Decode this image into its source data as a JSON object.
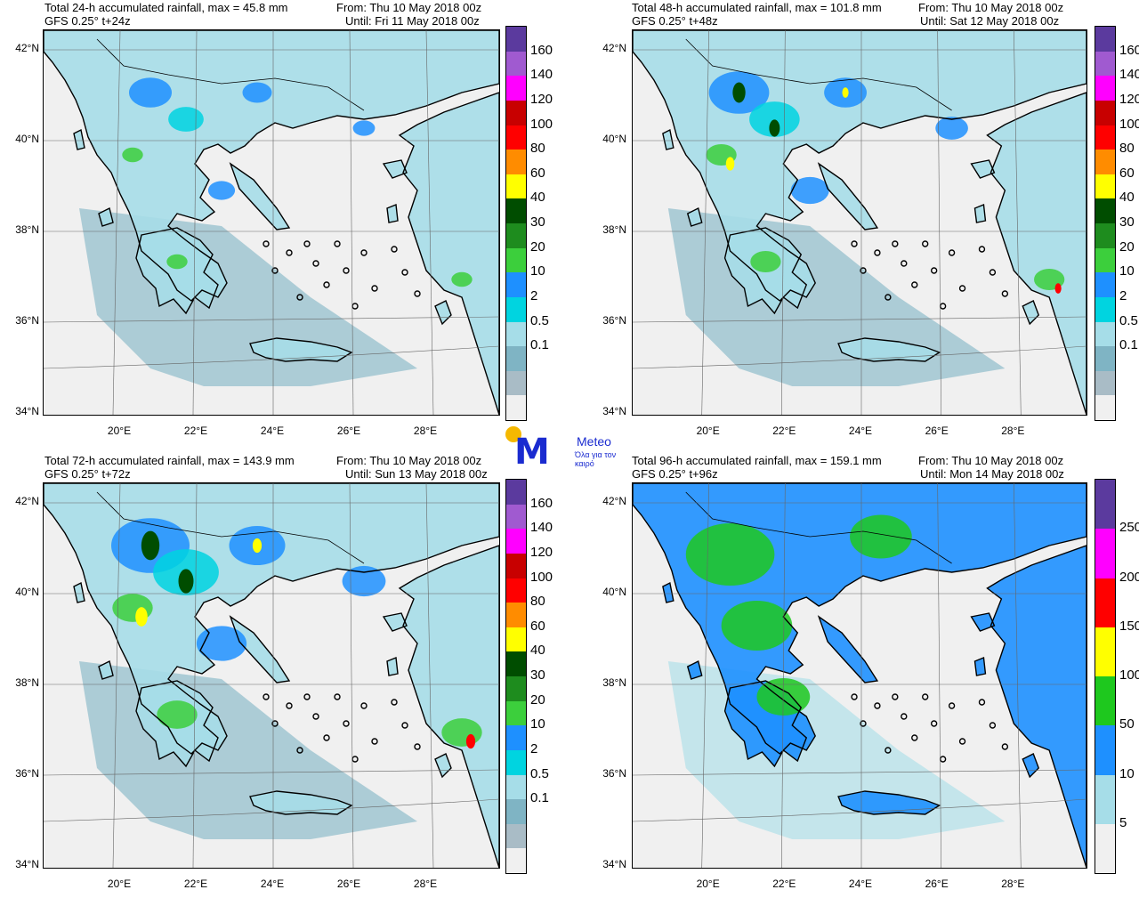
{
  "panels": [
    {
      "id": "tl",
      "title": "Total 24-h accumulated rainfall, max = 45.8 mm",
      "model": "GFS 0.25° t+24z",
      "from": "From: Thu 10 May 2018 00z",
      "until": "Until: Fri 11 May 2018 00z",
      "intensity": 0.35,
      "colorbar": [
        "160",
        "140",
        "120",
        "100",
        "80",
        "60",
        "40",
        "30",
        "20",
        "10",
        "2",
        "0.5",
        "0.1"
      ]
    },
    {
      "id": "tr",
      "title": "Total 48-h accumulated rainfall, max = 101.8 mm",
      "model": "GFS 0.25° t+48z",
      "from": "From: Thu 10 May 2018 00z",
      "until": "Until: Sat 12 May 2018 00z",
      "intensity": 0.6,
      "colorbar": [
        "160",
        "140",
        "120",
        "100",
        "80",
        "60",
        "40",
        "30",
        "20",
        "10",
        "2",
        "0.5",
        "0.1"
      ]
    },
    {
      "id": "bl",
      "title": "Total 72-h accumulated rainfall, max = 143.9 mm",
      "model": "GFS 0.25° t+72z",
      "from": "From: Thu 10 May 2018 00z",
      "until": "Until: Sun 13 May 2018 00z",
      "intensity": 0.85,
      "colorbar": [
        "160",
        "140",
        "120",
        "100",
        "80",
        "60",
        "40",
        "30",
        "20",
        "10",
        "2",
        "0.5",
        "0.1"
      ]
    },
    {
      "id": "br",
      "title": "Total 96-h accumulated rainfall, max = 159.1 mm",
      "model": "GFS 0.25° t+96z",
      "from": "From: Thu 10 May 2018 00z",
      "until": "Until: Mon 14 May 2018 00z",
      "intensity": 1.0,
      "colorbar": [
        "250",
        "200",
        "150",
        "100",
        "50",
        "10",
        "5"
      ]
    }
  ],
  "lat_labels": [
    "42°N",
    "40°N",
    "38°N",
    "36°N",
    "34°N"
  ],
  "lon_labels": [
    "20°E",
    "22°E",
    "24°E",
    "26°E",
    "28°E"
  ],
  "colors": {
    "scale13": [
      "#5b3a9e",
      "#a05ad0",
      "#ff00ff",
      "#c80000",
      "#ff0000",
      "#ff8c00",
      "#ffff00",
      "#004d00",
      "#1e8c1e",
      "#3ccf3c",
      "#1e90ff",
      "#00d4e0",
      "#a6dde8",
      "#7fb4c4",
      "#a9bcc6",
      "#f0f0f0"
    ],
    "scale7": [
      "#5b3a9e",
      "#ff00ff",
      "#ff0000",
      "#ffff00",
      "#1ec81e",
      "#1e90ff",
      "#a6dde8",
      "#f0f0f0"
    ],
    "coast": "#000000",
    "background": "#f0f0f0"
  },
  "logo": {
    "name": "Meteo",
    "tagline": "Όλα για τον καιρό",
    "mark": "M"
  }
}
